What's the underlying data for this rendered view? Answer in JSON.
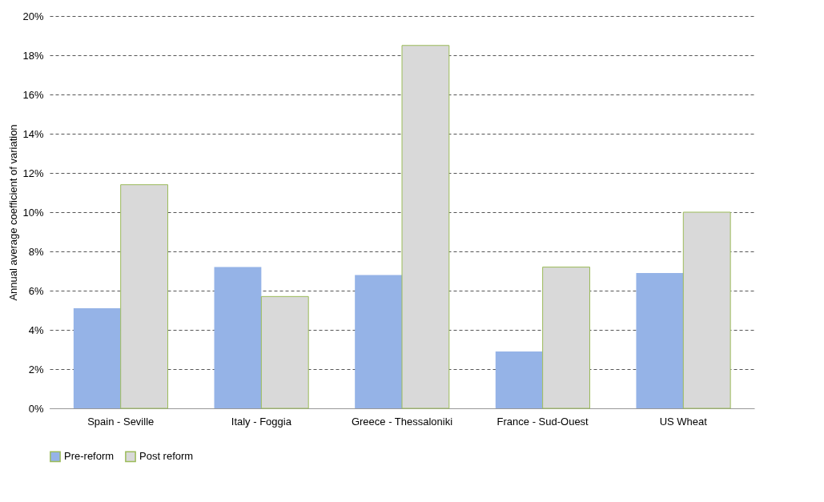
{
  "chart_data": {
    "type": "bar",
    "ylabel": "Annual average coefficient of variation",
    "categories": [
      "Spain - Seville",
      "Italy - Foggia",
      "Greece - Thessaloniki",
      "France - Sud-Ouest",
      "US Wheat"
    ],
    "series": [
      {
        "name": "Pre-reform",
        "color": "#95b3e7",
        "values": [
          5.1,
          7.2,
          6.8,
          2.9,
          6.9
        ]
      },
      {
        "name": "Post reform",
        "color": "#d9d9d9",
        "values": [
          11.4,
          5.7,
          18.5,
          7.2,
          10.0
        ]
      }
    ],
    "ylim": [
      0,
      20
    ],
    "yticks": [
      {
        "value": 0,
        "label": "0%"
      },
      {
        "value": 2,
        "label": "2%"
      },
      {
        "value": 4,
        "label": "4%"
      },
      {
        "value": 6,
        "label": "6%"
      },
      {
        "value": 8,
        "label": "8%"
      },
      {
        "value": 10,
        "label": "10%"
      },
      {
        "value": 12,
        "label": "12%"
      },
      {
        "value": 14,
        "label": "14%"
      },
      {
        "value": 16,
        "label": "16%"
      },
      {
        "value": 18,
        "label": "18%"
      },
      {
        "value": 20,
        "label": "20%"
      }
    ],
    "grid": "y",
    "legend": "bottom"
  }
}
